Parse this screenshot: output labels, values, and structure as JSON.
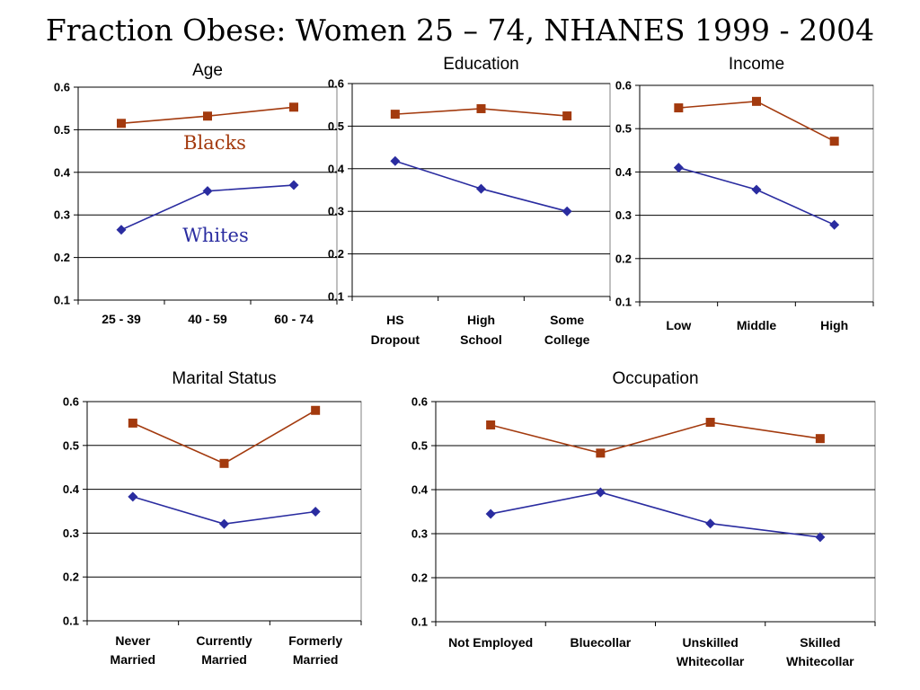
{
  "title": "Fraction Obese: Women 25 – 74, NHANES 1999 - 2004",
  "colors": {
    "blacks": "#a33a0e",
    "whites": "#2a2ca0"
  },
  "chart_data": [
    {
      "type": "line",
      "title": "Age",
      "categories": [
        [
          "25 - 39"
        ],
        [
          "40 - 59"
        ],
        [
          "60 - 74"
        ]
      ],
      "ylim": [
        0.1,
        0.6
      ],
      "yticks": [
        "0.1",
        "0.2",
        "0.3",
        "0.4",
        "0.5",
        "0.6"
      ],
      "grid": true,
      "series": [
        {
          "name": "Blacks",
          "color": "#a33a0e",
          "marker": "square",
          "values": [
            0.515,
            0.532,
            0.553
          ]
        },
        {
          "name": "Whites",
          "color": "#2a2ca0",
          "marker": "diamond",
          "values": [
            0.265,
            0.356,
            0.37
          ]
        }
      ]
    },
    {
      "type": "line",
      "title": "Education",
      "categories": [
        [
          "HS",
          "Dropout"
        ],
        [
          "High",
          "School"
        ],
        [
          "Some",
          "College"
        ]
      ],
      "ylim": [
        0.1,
        0.6
      ],
      "yticks": [
        "0.1",
        "0.2",
        "0.3",
        "0.4",
        "0.5",
        "0.6"
      ],
      "grid": true,
      "series": [
        {
          "name": "",
          "color": "#a33a0e",
          "marker": "square",
          "values": [
            0.528,
            0.541,
            0.524
          ]
        },
        {
          "name": "",
          "color": "#2a2ca0",
          "marker": "diamond",
          "values": [
            0.418,
            0.353,
            0.3
          ]
        }
      ]
    },
    {
      "type": "line",
      "title": "Income",
      "categories": [
        [
          "Low"
        ],
        [
          "Middle"
        ],
        [
          "High"
        ]
      ],
      "ylim": [
        0.1,
        0.6
      ],
      "yticks": [
        "0.1",
        "0.2",
        "0.3",
        "0.4",
        "0.5",
        "0.6"
      ],
      "grid": true,
      "series": [
        {
          "name": "",
          "color": "#a33a0e",
          "marker": "square",
          "values": [
            0.548,
            0.563,
            0.471
          ]
        },
        {
          "name": "",
          "color": "#2a2ca0",
          "marker": "diamond",
          "values": [
            0.41,
            0.359,
            0.278
          ]
        }
      ]
    },
    {
      "type": "line",
      "title": "Marital Status",
      "categories": [
        [
          "Never",
          "Married"
        ],
        [
          "Currently",
          "Married"
        ],
        [
          "Formerly",
          "Married"
        ]
      ],
      "ylim": [
        0.1,
        0.6
      ],
      "yticks": [
        "0.1",
        "0.2",
        "0.3",
        "0.4",
        "0.5",
        "0.6"
      ],
      "grid": true,
      "series": [
        {
          "name": "",
          "color": "#a33a0e",
          "marker": "square",
          "values": [
            0.551,
            0.459,
            0.58
          ]
        },
        {
          "name": "",
          "color": "#2a2ca0",
          "marker": "diamond",
          "values": [
            0.383,
            0.321,
            0.349
          ]
        }
      ]
    },
    {
      "type": "line",
      "title": "Occupation",
      "categories": [
        [
          "Not Employed"
        ],
        [
          "Bluecollar"
        ],
        [
          "Unskilled",
          "Whitecollar"
        ],
        [
          "Skilled",
          "Whitecollar"
        ]
      ],
      "ylim": [
        0.1,
        0.6
      ],
      "yticks": [
        "0.1",
        "0.2",
        "0.3",
        "0.4",
        "0.5",
        "0.6"
      ],
      "grid": true,
      "series": [
        {
          "name": "",
          "color": "#a33a0e",
          "marker": "square",
          "values": [
            0.547,
            0.483,
            0.553,
            0.516
          ]
        },
        {
          "name": "",
          "color": "#2a2ca0",
          "marker": "diamond",
          "values": [
            0.345,
            0.394,
            0.323,
            0.292
          ]
        }
      ]
    }
  ]
}
